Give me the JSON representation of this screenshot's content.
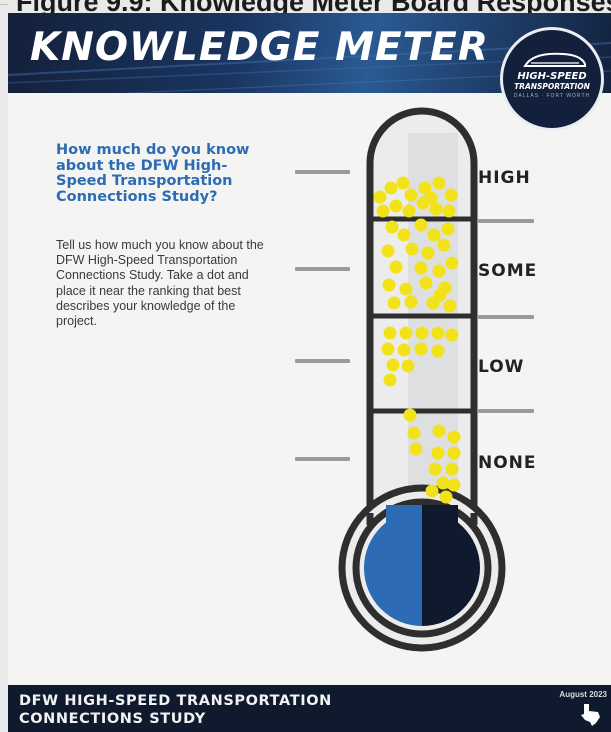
{
  "page_caption": "Figure 9.9: Knowledge Meter Board Responses",
  "corner_mark": "....",
  "header": {
    "title": "KNOWLEDGE METER",
    "logo_line1": "HIGH-SPEED",
    "logo_line2": "TRANSPORTATION",
    "logo_line3": "DALLAS · FORT WORTH"
  },
  "question": "How much do you know about the DFW High-Speed Transportation Connections Study?",
  "instructions": "Tell us how much you know about the DFW High-Speed Transportation Connections Study. Take a dot and place it near the ranking that best describes your knowledge of the project.",
  "levels": [
    "HIGH",
    "SOME",
    "LOW",
    "NONE"
  ],
  "colors": {
    "header_bg": "#1a3560",
    "question_text": "#2d6cb5",
    "dot": "#f2e21a",
    "bulb_left": "#2d6cb5",
    "bulb_right": "#0f1a2e",
    "footer_bg": "#0f1a2e"
  },
  "footer": {
    "title_line1": "DFW HIGH-SPEED TRANSPORTATION",
    "title_line2": "CONNECTIONS STUDY",
    "date": "August 2023",
    "org_icon": "texas-outline-icon"
  }
}
